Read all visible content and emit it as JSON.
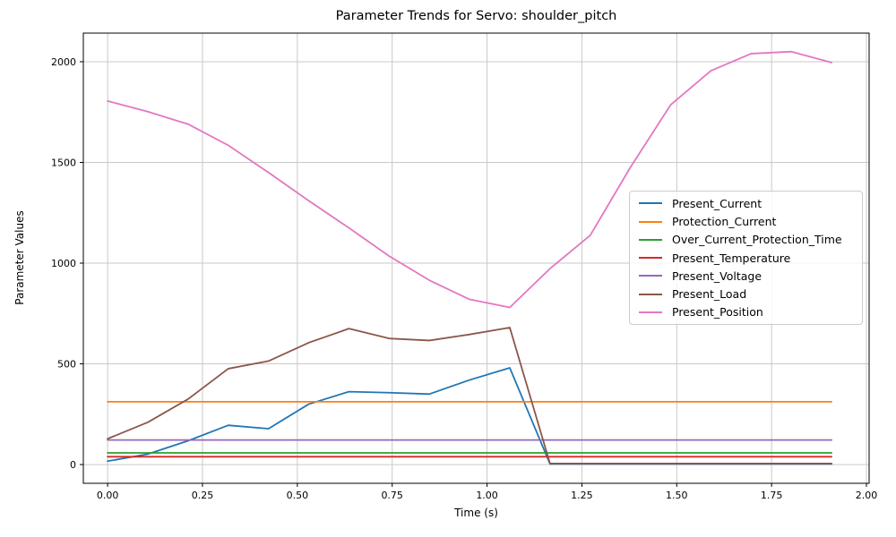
{
  "chart_data": {
    "type": "line",
    "title": "Parameter Trends for Servo: shoulder_pitch",
    "xlabel": "Time (s)",
    "ylabel": "Parameter Values",
    "grid": true,
    "legend_position": "center right",
    "xlim": [
      -0.064,
      2.007
    ],
    "ylim": [
      -93,
      2142
    ],
    "xticks": {
      "values": [
        0.0,
        0.25,
        0.5,
        0.75,
        1.0,
        1.25,
        1.5,
        1.75,
        2.0
      ],
      "labels": [
        "0.00",
        "0.25",
        "0.50",
        "0.75",
        "1.00",
        "1.25",
        "1.50",
        "1.75",
        "2.00"
      ]
    },
    "yticks": {
      "values": [
        0,
        500,
        1000,
        1500,
        2000
      ],
      "labels": [
        "0",
        "500",
        "1000",
        "1500",
        "2000"
      ]
    },
    "x": [
      0.0,
      0.106,
      0.212,
      0.318,
      0.424,
      0.53,
      0.636,
      0.742,
      0.848,
      0.954,
      1.06,
      1.166,
      1.272,
      1.378,
      1.484,
      1.59,
      1.696,
      1.802,
      1.908
    ],
    "series": [
      {
        "name": "Present_Current",
        "color": "#1f77b4",
        "values": [
          17,
          52,
          118,
          195,
          178,
          300,
          362,
          357,
          350,
          420,
          480,
          3,
          3,
          3,
          3,
          3,
          3,
          3,
          3
        ]
      },
      {
        "name": "Protection_Current",
        "color": "#ff7f0e",
        "values": [
          312,
          312,
          312,
          312,
          312,
          312,
          312,
          312,
          312,
          312,
          312,
          312,
          312,
          312,
          312,
          312,
          312,
          312,
          312
        ]
      },
      {
        "name": "Over_Current_Protection_Time",
        "color": "#2ca02c",
        "values": [
          58,
          58,
          58,
          58,
          58,
          58,
          58,
          58,
          58,
          58,
          58,
          58,
          58,
          58,
          58,
          58,
          58,
          58,
          58
        ]
      },
      {
        "name": "Present_Temperature",
        "color": "#d62728",
        "values": [
          39,
          39,
          39,
          39,
          39,
          39,
          39,
          39,
          39,
          39,
          39,
          39,
          39,
          39,
          39,
          39,
          39,
          39,
          39
        ]
      },
      {
        "name": "Present_Voltage",
        "color": "#9467bd",
        "values": [
          122,
          122,
          122,
          122,
          122,
          122,
          122,
          122,
          122,
          122,
          122,
          122,
          122,
          122,
          122,
          122,
          122,
          122,
          122
        ]
      },
      {
        "name": "Present_Load",
        "color": "#8c564b",
        "values": [
          128,
          210,
          325,
          476,
          514,
          605,
          675,
          626,
          616,
          646,
          680,
          5,
          5,
          5,
          5,
          5,
          5,
          5,
          5
        ]
      },
      {
        "name": "Present_Position",
        "color": "#e377c2",
        "values": [
          1805,
          1752,
          1690,
          1585,
          1450,
          1310,
          1175,
          1035,
          915,
          820,
          780,
          973,
          1138,
          1476,
          1786,
          1955,
          2040,
          2050,
          1996
        ]
      }
    ]
  },
  "style": {
    "grid_color": "#c9c9c9",
    "spine_color": "#000000",
    "background": "#ffffff"
  }
}
